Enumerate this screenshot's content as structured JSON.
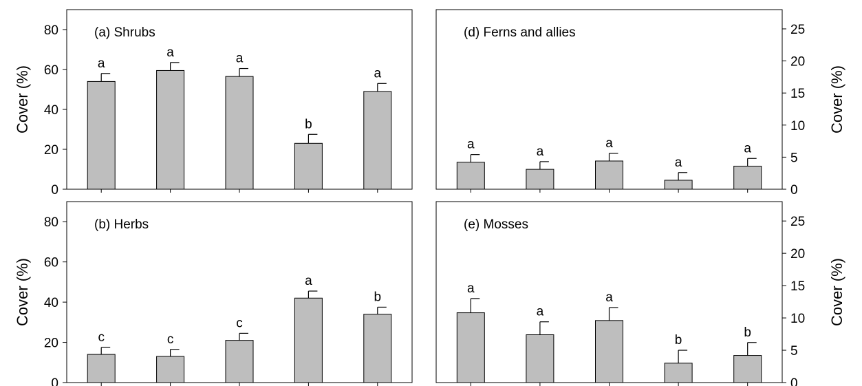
{
  "chart_data": [
    {
      "type": "bar",
      "title": "(a) Shrubs",
      "ylabel": "Cover (%)",
      "ylim": [
        0,
        90
      ],
      "yticks": [
        0,
        20,
        40,
        60,
        80
      ],
      "axis_side": "left",
      "values": [
        54,
        59.5,
        56.5,
        23,
        49
      ],
      "errors": [
        4,
        4,
        4,
        4.5,
        4
      ],
      "letters": [
        "a",
        "a",
        "a",
        "b",
        "a"
      ]
    },
    {
      "type": "bar",
      "title": "(b) Herbs",
      "ylabel": "Cover (%)",
      "ylim": [
        0,
        90
      ],
      "yticks": [
        0,
        20,
        40,
        60,
        80
      ],
      "axis_side": "left",
      "values": [
        14,
        13,
        21,
        42,
        34
      ],
      "errors": [
        3.5,
        3.5,
        3.5,
        3.5,
        3.5
      ],
      "letters": [
        "c",
        "c",
        "c",
        "a",
        "b"
      ]
    },
    {
      "type": "bar",
      "title": "(d) Ferns and allies",
      "ylabel": "Cover (%)",
      "ylim": [
        0,
        28
      ],
      "yticks": [
        0,
        5,
        10,
        15,
        20,
        25
      ],
      "axis_side": "right",
      "values": [
        4.2,
        3.1,
        4.4,
        1.4,
        3.6
      ],
      "errors": [
        1.2,
        1.2,
        1.2,
        1.2,
        1.2
      ],
      "letters": [
        "a",
        "a",
        "a",
        "a",
        "a"
      ]
    },
    {
      "type": "bar",
      "title": "(e) Mosses",
      "ylabel": "Cover (%)",
      "ylim": [
        0,
        28
      ],
      "yticks": [
        0,
        5,
        10,
        15,
        20,
        25
      ],
      "axis_side": "right",
      "values": [
        10.8,
        7.4,
        9.6,
        3.0,
        4.2
      ],
      "errors": [
        2.2,
        2.0,
        2.0,
        2.0,
        2.0
      ],
      "letters": [
        "a",
        "a",
        "a",
        "b",
        "b"
      ]
    }
  ]
}
